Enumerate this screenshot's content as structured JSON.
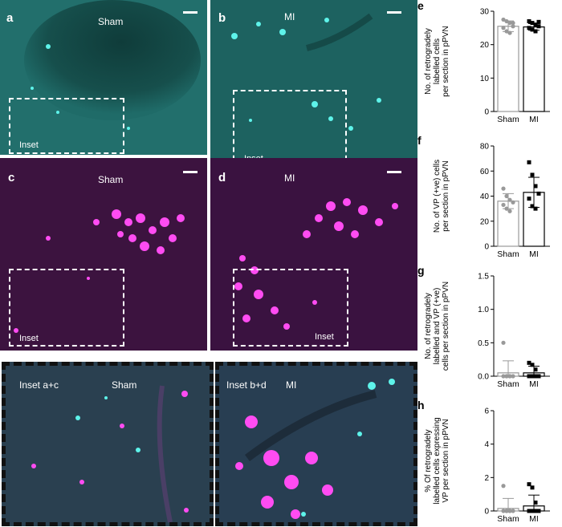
{
  "panels": {
    "a": {
      "letter": "a",
      "condition": "Sham",
      "inset": "Inset"
    },
    "b": {
      "letter": "b",
      "condition": "MI",
      "inset": "Inset"
    },
    "c": {
      "letter": "c",
      "condition": "Sham",
      "inset": "Inset"
    },
    "d": {
      "letter": "d",
      "condition": "MI",
      "inset": "Inset"
    }
  },
  "insets": {
    "left": {
      "label": "Inset a+c",
      "condition": "Sham"
    },
    "right": {
      "label": "Inset b+d",
      "condition": "MI"
    }
  },
  "colors": {
    "cyan_bg": "#1f6b68",
    "cyan_cell": "#5ef3ea",
    "magenta_bg": "#3a0f3c",
    "magenta_cell": "#ff4cf2",
    "overlay_bg": "#243a4a"
  },
  "chart_data": [
    {
      "panel": "e",
      "type": "bar",
      "categories": [
        "Sham",
        "MI"
      ],
      "values": [
        25.5,
        25.3
      ],
      "errors": [
        1.6,
        1.0
      ],
      "points": [
        [
          27.5,
          27,
          26.5,
          25.5,
          25,
          24,
          23.5,
          26.5
        ],
        [
          27,
          26.5,
          26,
          25.5,
          25,
          24.5,
          24,
          26.8
        ]
      ],
      "markers": [
        "circle",
        "square"
      ],
      "bar_fill": [
        "#ffffff",
        "#ffffff"
      ],
      "bar_stroke": [
        "#999999",
        "#000000"
      ],
      "ylabel": "No. of retrogradely labelled cells per section in pPVN",
      "ylim": [
        0,
        30
      ],
      "yticks": [
        "0",
        "10",
        "20",
        "30"
      ]
    },
    {
      "panel": "f",
      "type": "bar",
      "categories": [
        "Sham",
        "MI"
      ],
      "values": [
        36,
        43
      ],
      "errors": [
        6,
        12
      ],
      "points": [
        [
          46,
          40,
          37,
          35,
          33,
          30,
          28
        ],
        [
          67,
          57,
          48,
          42,
          38,
          32,
          30
        ]
      ],
      "markers": [
        "circle",
        "square"
      ],
      "bar_fill": [
        "#ffffff",
        "#ffffff"
      ],
      "bar_stroke": [
        "#999999",
        "#000000"
      ],
      "ylabel": "No. of VP (+ve) cells per section in pPVN",
      "ylim": [
        0,
        80
      ],
      "yticks": [
        "0",
        "20",
        "40",
        "60",
        "80"
      ]
    },
    {
      "panel": "g",
      "type": "bar",
      "categories": [
        "Sham",
        "MI"
      ],
      "values": [
        0.05,
        0.05
      ],
      "errors": [
        0.18,
        0.1
      ],
      "points": [
        [
          0.5,
          0.0,
          0.0,
          0.0,
          0.0,
          0.0,
          0.0
        ],
        [
          0.2,
          0.17,
          0.1,
          0.0,
          0.0,
          0.0,
          0.0
        ]
      ],
      "markers": [
        "circle",
        "square"
      ],
      "bar_fill": [
        "#ffffff",
        "#ffffff"
      ],
      "bar_stroke": [
        "#999999",
        "#000000"
      ],
      "ylabel": "No. of retrogradely labelled and VP (+ve) cells per section in pPVN",
      "ylim": [
        0,
        1.5
      ],
      "yticks": [
        "0.0",
        "0.5",
        "1.0",
        "1.5"
      ]
    },
    {
      "panel": "h",
      "type": "bar",
      "categories": [
        "Sham",
        "MI"
      ],
      "values": [
        0.15,
        0.3
      ],
      "errors": [
        0.6,
        0.65
      ],
      "points": [
        [
          1.5,
          0.0,
          0.0,
          0.0,
          0.0,
          0.0,
          0.0
        ],
        [
          1.6,
          1.4,
          0.5,
          0.0,
          0.0,
          0.0,
          0.0
        ]
      ],
      "markers": [
        "circle",
        "square"
      ],
      "bar_fill": [
        "#ffffff",
        "#ffffff"
      ],
      "bar_stroke": [
        "#999999",
        "#000000"
      ],
      "ylabel": "% Of retrogradely labelled cells expressing VP per section in pPVN",
      "ylim": [
        0,
        6
      ],
      "yticks": [
        "0",
        "2",
        "4",
        "6"
      ]
    }
  ]
}
